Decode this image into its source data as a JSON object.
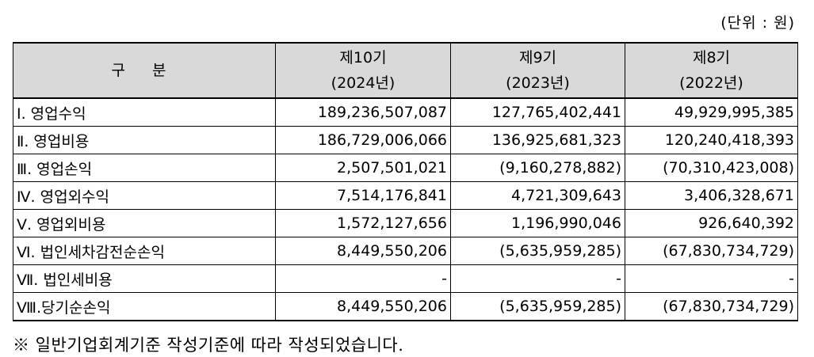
{
  "unit_label": "(단위 : 원)",
  "table": {
    "header": {
      "category": "구 분",
      "periods": [
        {
          "term": "제10기",
          "year": "(2024년)"
        },
        {
          "term": "제9기",
          "year": "(2023년)"
        },
        {
          "term": "제8기",
          "year": "(2022년)"
        }
      ]
    },
    "rows": [
      {
        "label": "Ⅰ. 영업수익",
        "values": [
          "189,236,507,087",
          "127,765,402,441",
          "49,929,995,385"
        ]
      },
      {
        "label": "Ⅱ. 영업비용",
        "values": [
          "186,729,006,066",
          "136,925,681,323",
          "120,240,418,393"
        ]
      },
      {
        "label": "Ⅲ. 영업손익",
        "values": [
          "2,507,501,021",
          "(9,160,278,882)",
          "(70,310,423,008)"
        ]
      },
      {
        "label": "Ⅳ. 영업외수익",
        "values": [
          "7,514,176,841",
          "4,721,309,643",
          "3,406,328,671"
        ]
      },
      {
        "label": "Ⅴ. 영업외비용",
        "values": [
          "1,572,127,656",
          "1,196,990,046",
          "926,640,392"
        ]
      },
      {
        "label": "Ⅵ. 법인세차감전순손익",
        "values": [
          "8,449,550,206",
          "(5,635,959,285)",
          "(67,830,734,729)"
        ]
      },
      {
        "label": "Ⅶ. 법인세비용",
        "values": [
          "-",
          "-",
          "-"
        ]
      },
      {
        "label": "Ⅷ.당기순손익",
        "values": [
          "8,449,550,206",
          "(5,635,959,285)",
          "(67,830,734,729)"
        ]
      }
    ]
  },
  "footnote": "※ 일반기업회계기준 작성기준에 따라 작성되었습니다."
}
